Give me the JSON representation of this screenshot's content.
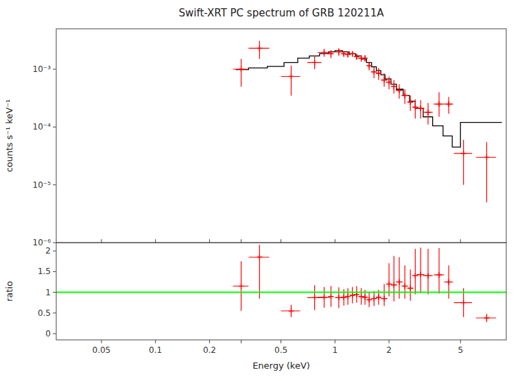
{
  "chart_data": [
    {
      "type": "line",
      "title": "Swift-XRT PC spectrum of GRB 120211A",
      "ylabel": "counts s⁻¹ keV⁻¹",
      "log": true,
      "xlim": [
        0.028,
        9.0
      ],
      "ylim": [
        1e-06,
        0.005
      ],
      "xticks": [
        0.05,
        0.1,
        0.2,
        0.3,
        0.5,
        1,
        2,
        5
      ],
      "yticks": [
        {
          "value": 1e-06,
          "label": "10⁻⁶"
        },
        {
          "value": 1e-05,
          "label": "10⁻⁵"
        },
        {
          "value": 0.0001,
          "label": "10⁻⁴"
        },
        {
          "value": 0.001,
          "label": "10⁻³"
        }
      ],
      "tick_labels": "y",
      "series": [
        {
          "type": "line",
          "color": "black",
          "x": [
            0.28,
            0.33,
            0.33,
            0.42,
            0.42,
            0.52,
            0.52,
            0.62,
            0.62,
            0.72,
            0.72,
            0.82,
            0.82,
            0.92,
            0.92,
            1.0,
            1.0,
            1.1,
            1.1,
            1.2,
            1.2,
            1.3,
            1.3,
            1.4,
            1.4,
            1.5,
            1.5,
            1.6,
            1.6,
            1.7,
            1.7,
            1.8,
            1.8,
            1.9,
            1.9,
            2.05,
            2.05,
            2.2,
            2.2,
            2.4,
            2.4,
            2.6,
            2.6,
            2.8,
            2.8,
            3.1,
            3.1,
            3.5,
            3.5,
            4.0,
            4.0,
            4.5,
            4.5,
            5.0,
            5.0,
            6.0,
            6.0,
            7.5,
            7.5,
            8.5
          ],
          "values": [
            0.00098,
            0.00098,
            0.00105,
            0.00105,
            0.00112,
            0.00112,
            0.0013,
            0.0013,
            0.00155,
            0.00155,
            0.0017,
            0.0017,
            0.00185,
            0.00185,
            0.002,
            0.002,
            0.0021,
            0.0021,
            0.002,
            0.002,
            0.00185,
            0.00185,
            0.0017,
            0.0017,
            0.0015,
            0.0015,
            0.0013,
            0.0013,
            0.0011,
            0.0011,
            0.00095,
            0.00095,
            0.0008,
            0.0008,
            0.00068,
            0.00068,
            0.00055,
            0.00055,
            0.00045,
            0.00045,
            0.00035,
            0.00035,
            0.00028,
            0.00028,
            0.00021,
            0.00021,
            0.00015,
            0.00015,
            0.000105,
            0.000105,
            7e-05,
            7e-05,
            4.5e-05,
            4.5e-05,
            0.00012,
            0.00012,
            0.00012,
            0.00012,
            0.00012,
            0.00012
          ]
        },
        {
          "type": "scatter",
          "color": "red",
          "marker": "plus",
          "x": [
            0.3,
            0.38,
            0.57,
            0.77,
            0.87,
            0.95,
            1.05,
            1.12,
            1.18,
            1.25,
            1.32,
            1.4,
            1.47,
            1.55,
            1.65,
            1.75,
            1.88,
            2.0,
            2.13,
            2.28,
            2.45,
            2.63,
            2.8,
            3.0,
            3.3,
            3.8,
            4.3,
            5.2,
            7.0
          ],
          "values": [
            0.001,
            0.0023,
            0.00075,
            0.0013,
            0.00195,
            0.00185,
            0.002,
            0.00185,
            0.0018,
            0.00185,
            0.00165,
            0.00155,
            0.00155,
            0.00115,
            0.0009,
            0.00085,
            0.00065,
            0.0006,
            0.0005,
            0.00043,
            0.00035,
            0.00027,
            0.00022,
            0.00021,
            0.00018,
            0.00025,
            0.00025,
            3.5e-05,
            3e-05
          ],
          "xerr_lo": [
            0.03,
            0.05,
            0.07,
            0.07,
            0.07,
            0.03,
            0.05,
            0.03,
            0.03,
            0.04,
            0.03,
            0.05,
            0.03,
            0.04,
            0.06,
            0.05,
            0.08,
            0.07,
            0.08,
            0.1,
            0.1,
            0.1,
            0.1,
            0.15,
            0.2,
            0.25,
            0.25,
            0.6,
            0.9
          ],
          "xerr_hi": [
            0.03,
            0.05,
            0.07,
            0.07,
            0.07,
            0.03,
            0.05,
            0.03,
            0.03,
            0.04,
            0.03,
            0.05,
            0.03,
            0.04,
            0.06,
            0.05,
            0.08,
            0.07,
            0.08,
            0.1,
            0.1,
            0.1,
            0.1,
            0.15,
            0.2,
            0.25,
            0.25,
            0.6,
            0.9
          ],
          "yerr_lo": [
            0.0005,
            0.0008,
            0.0004,
            0.0003,
            0.0003,
            0.0003,
            0.0003,
            0.0002,
            0.0002,
            0.0002,
            0.0002,
            0.0002,
            0.0002,
            0.0002,
            0.0002,
            0.0002,
            0.00015,
            0.00015,
            0.00012,
            0.00012,
            0.0001,
            8e-05,
            8e-05,
            7e-05,
            7e-05,
            0.0001,
            8e-05,
            2.5e-05,
            2.5e-05
          ],
          "yerr_hi": [
            0.0005,
            0.0008,
            0.0004,
            0.0004,
            0.0003,
            0.0003,
            0.0003,
            0.0002,
            0.0002,
            0.0002,
            0.0002,
            0.0002,
            0.0002,
            0.0002,
            0.0002,
            0.0002,
            0.0002,
            0.00015,
            0.00015,
            0.00012,
            0.0001,
            8e-05,
            8e-05,
            8e-05,
            8e-05,
            0.00015,
            8e-05,
            2.5e-05,
            2.5e-05
          ]
        }
      ]
    },
    {
      "type": "scatter",
      "xlabel": "Energy (keV)",
      "ylabel": "ratio",
      "log": "x",
      "xlim": [
        0.028,
        9.0
      ],
      "ylim": [
        -0.15,
        2.2
      ],
      "xticks": [
        0.05,
        0.1,
        0.2,
        {
          "value": 0.3,
          "label": null
        },
        0.5,
        1,
        2,
        5
      ],
      "yticks": [
        0,
        0.5,
        1,
        1.5,
        2
      ],
      "series": [
        {
          "type": "scatter",
          "color": "red",
          "marker": "plus",
          "x": [
            0.3,
            0.38,
            0.57,
            0.77,
            0.87,
            0.95,
            1.05,
            1.12,
            1.18,
            1.25,
            1.32,
            1.4,
            1.47,
            1.55,
            1.65,
            1.75,
            1.88,
            2.0,
            2.13,
            2.28,
            2.45,
            2.63,
            2.8,
            3.0,
            3.3,
            3.8,
            4.3,
            5.2,
            7.0
          ],
          "values": [
            1.15,
            1.85,
            0.55,
            0.87,
            0.88,
            0.9,
            0.87,
            0.88,
            0.9,
            0.93,
            0.95,
            0.9,
            0.88,
            0.82,
            0.85,
            0.88,
            0.85,
            1.2,
            1.18,
            1.25,
            1.15,
            1.1,
            1.4,
            1.43,
            1.4,
            1.42,
            1.25,
            0.75,
            0.38
          ],
          "xerr_lo": [
            0.03,
            0.05,
            0.07,
            0.07,
            0.07,
            0.03,
            0.05,
            0.03,
            0.03,
            0.04,
            0.03,
            0.05,
            0.03,
            0.04,
            0.06,
            0.05,
            0.08,
            0.07,
            0.08,
            0.1,
            0.1,
            0.1,
            0.1,
            0.15,
            0.2,
            0.25,
            0.25,
            0.6,
            0.9
          ],
          "xerr_hi": [
            0.03,
            0.05,
            0.07,
            0.07,
            0.07,
            0.03,
            0.05,
            0.03,
            0.03,
            0.04,
            0.03,
            0.05,
            0.03,
            0.04,
            0.06,
            0.05,
            0.08,
            0.07,
            0.08,
            0.1,
            0.1,
            0.1,
            0.1,
            0.15,
            0.2,
            0.25,
            0.25,
            0.6,
            0.9
          ],
          "yerr_lo": [
            0.6,
            1.0,
            0.15,
            0.3,
            0.25,
            0.25,
            0.25,
            0.2,
            0.2,
            0.2,
            0.2,
            0.2,
            0.18,
            0.18,
            0.18,
            0.18,
            0.18,
            0.3,
            0.4,
            0.4,
            0.3,
            0.3,
            0.45,
            0.45,
            0.45,
            0.45,
            0.4,
            0.35,
            0.1
          ],
          "yerr_hi": [
            0.6,
            0.3,
            0.15,
            0.3,
            0.25,
            0.25,
            0.25,
            0.2,
            0.2,
            0.2,
            0.2,
            0.2,
            0.18,
            0.18,
            0.18,
            0.18,
            0.35,
            0.5,
            0.7,
            0.6,
            0.5,
            0.45,
            0.65,
            0.65,
            0.65,
            0.65,
            0.4,
            0.35,
            0.1
          ]
        },
        {
          "type": "hline",
          "color": "#00ff00",
          "values": [
            1.0
          ]
        }
      ]
    }
  ]
}
